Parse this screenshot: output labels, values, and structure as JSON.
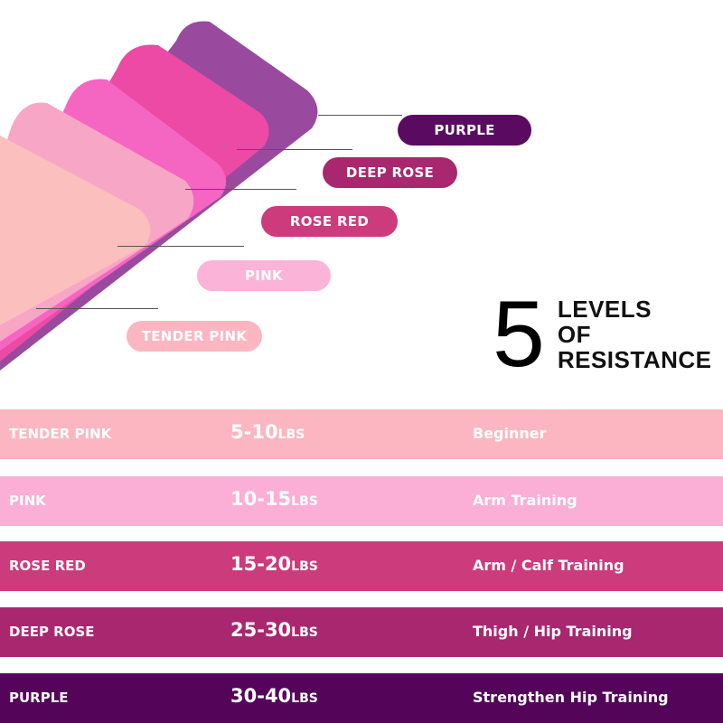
{
  "colors": {
    "tender_pink": "#fbb6c1",
    "pink": "#fbaed6",
    "rose_red": "#cc3b7b",
    "deep_rose": "#a9276f",
    "purple": "#540559"
  },
  "labels": [
    "PURPLE",
    "DEEP ROSE",
    "ROSE RED",
    "PINK",
    "TENDER PINK"
  ],
  "headline": {
    "number": "5",
    "line1": "LEVELS",
    "line2": "OF",
    "line3": "RESISTANCE"
  },
  "table": [
    {
      "name": "TENDER PINK",
      "range": "5-10",
      "unit": "LBS",
      "use": "Beginner"
    },
    {
      "name": "PINK",
      "range": "10-15",
      "unit": "LBS",
      "use": "Arm Training"
    },
    {
      "name": "ROSE RED",
      "range": "15-20",
      "unit": "LBS",
      "use": "Arm / Calf Training"
    },
    {
      "name": "DEEP ROSE",
      "range": "25-30",
      "unit": "LBS",
      "use": "Thigh / Hip Training"
    },
    {
      "name": "PURPLE",
      "range": "30-40",
      "unit": "LBS",
      "use": "Strengthen Hip Training"
    }
  ]
}
